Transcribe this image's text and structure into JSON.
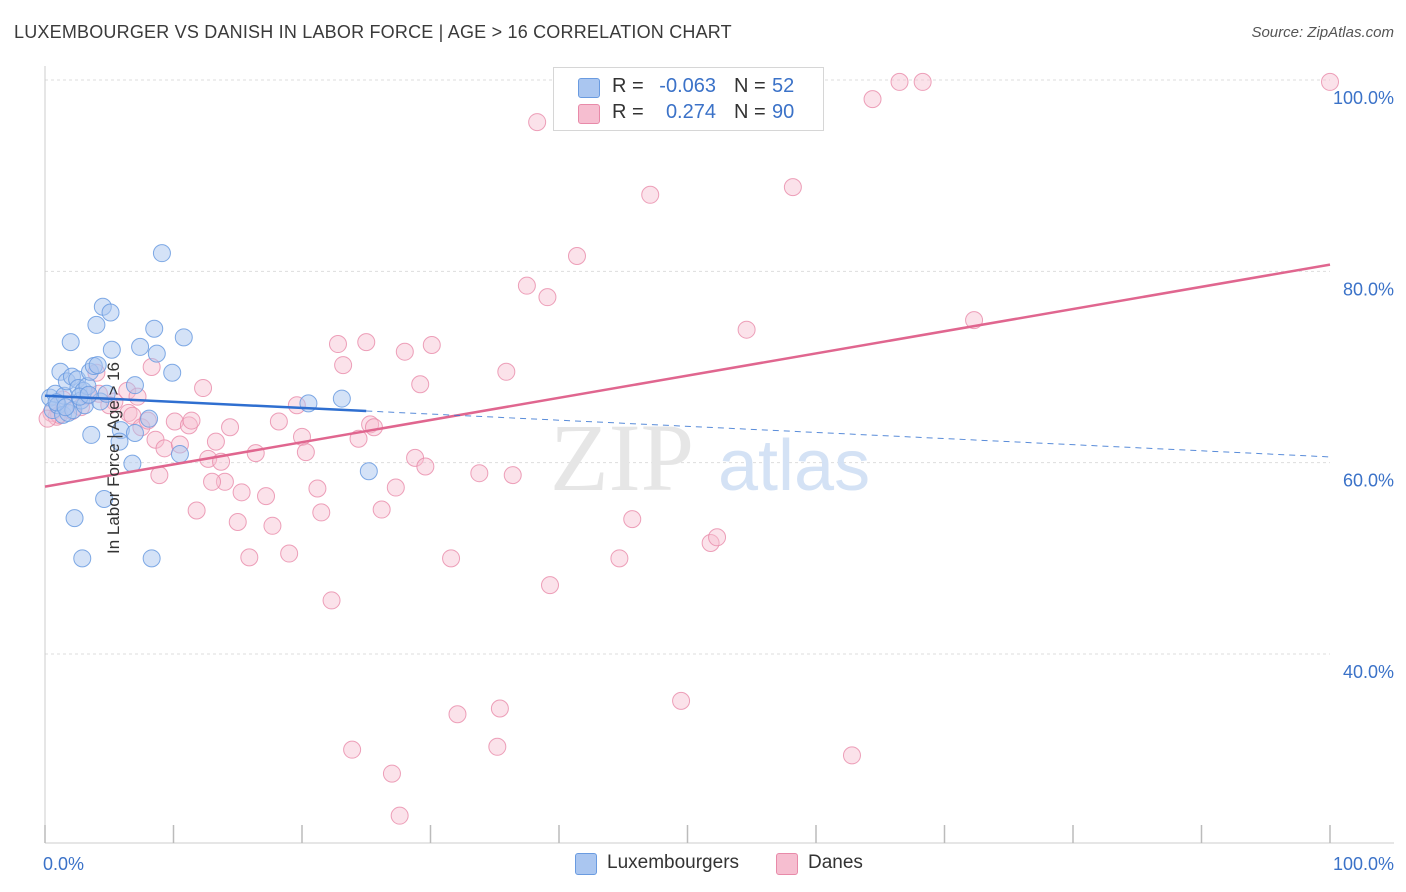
{
  "header": {
    "title": "LUXEMBOURGER VS DANISH IN LABOR FORCE | AGE > 16 CORRELATION CHART",
    "source": "Source: ZipAtlas.com"
  },
  "watermark": {
    "zip": "ZIP",
    "atlas": "atlas"
  },
  "legend": {
    "rows": [
      {
        "r_label": "R =",
        "r_value": "-0.063",
        "n_label": "N =",
        "n_value": "52"
      },
      {
        "r_label": "R =",
        "r_value": "0.274",
        "n_label": "N =",
        "n_value": "90"
      }
    ]
  },
  "bottom_legend": [
    "Luxembourgers",
    "Danes"
  ],
  "colors": {
    "blue_fill": "#aac6f0",
    "blue_stroke": "#6a9be0",
    "blue_line": "#2f6fd0",
    "pink_fill": "#f6bed0",
    "pink_stroke": "#e88aa9",
    "pink_line": "#e0668f",
    "tick_label": "#3b72c8",
    "grid": "#dddddd"
  },
  "chart_data": {
    "type": "scatter",
    "title": "LUXEMBOURGER VS DANISH IN LABOR FORCE | AGE > 16 CORRELATION CHART",
    "xlabel": "",
    "ylabel": "In Labor Force | Age > 16",
    "xlim": [
      0,
      100
    ],
    "ylim": [
      20,
      102
    ],
    "x_tick_labels": [
      "0.0%",
      "100.0%"
    ],
    "y_ticks": [
      40,
      60,
      80,
      100
    ],
    "y_tick_labels": [
      "40.0%",
      "60.0%",
      "80.0%",
      "100.0%"
    ],
    "grid": "horizontal dashed",
    "legend": "top-center",
    "series": [
      {
        "name": "Luxembourgers",
        "r": -0.063,
        "n": 52,
        "trend": {
          "x0": 0,
          "y0": 67.0,
          "x1": 25,
          "y1": 65.4,
          "dashed_to_x": 100,
          "dashed_to_y": 60.6
        },
        "points": [
          [
            0.4,
            66.8
          ],
          [
            0.6,
            65.5
          ],
          [
            0.8,
            67.2
          ],
          [
            1.0,
            66.0
          ],
          [
            1.2,
            69.5
          ],
          [
            1.4,
            65.0
          ],
          [
            1.5,
            67.0
          ],
          [
            1.7,
            68.5
          ],
          [
            1.8,
            65.2
          ],
          [
            2.0,
            72.6
          ],
          [
            2.1,
            69.0
          ],
          [
            2.2,
            65.5
          ],
          [
            2.3,
            54.2
          ],
          [
            2.5,
            68.7
          ],
          [
            2.6,
            67.8
          ],
          [
            2.8,
            66.5
          ],
          [
            2.9,
            50.0
          ],
          [
            3.0,
            67.5
          ],
          [
            3.1,
            66.0
          ],
          [
            3.3,
            68.0
          ],
          [
            3.5,
            69.5
          ],
          [
            3.6,
            62.9
          ],
          [
            3.8,
            70.1
          ],
          [
            4.0,
            74.4
          ],
          [
            4.1,
            70.2
          ],
          [
            4.3,
            66.4
          ],
          [
            4.5,
            76.3
          ],
          [
            4.6,
            56.2
          ],
          [
            4.8,
            67.2
          ],
          [
            5.1,
            75.7
          ],
          [
            5.2,
            71.8
          ],
          [
            5.9,
            63.4
          ],
          [
            5.8,
            62.2
          ],
          [
            6.8,
            59.9
          ],
          [
            7.0,
            68.1
          ],
          [
            7.0,
            63.1
          ],
          [
            7.4,
            72.1
          ],
          [
            8.1,
            64.6
          ],
          [
            8.3,
            50.0
          ],
          [
            8.5,
            74.0
          ],
          [
            8.7,
            71.4
          ],
          [
            9.1,
            81.9
          ],
          [
            9.9,
            69.4
          ],
          [
            10.5,
            60.9
          ],
          [
            10.8,
            73.1
          ],
          [
            20.5,
            66.2
          ],
          [
            23.1,
            66.7
          ],
          [
            25.2,
            59.1
          ],
          [
            0.9,
            66.3
          ],
          [
            1.6,
            65.8
          ],
          [
            2.7,
            66.9
          ],
          [
            3.4,
            67.1
          ]
        ]
      },
      {
        "name": "Danes",
        "r": 0.274,
        "n": 90,
        "trend": {
          "x0": 0,
          "y0": 57.5,
          "x1": 100,
          "y1": 80.7
        },
        "points": [
          [
            0.5,
            65.2
          ],
          [
            0.9,
            64.8
          ],
          [
            1.4,
            66.6
          ],
          [
            2.1,
            65.4
          ],
          [
            2.8,
            65.8
          ],
          [
            3.3,
            67.0
          ],
          [
            4.0,
            69.4
          ],
          [
            5.4,
            66.4
          ],
          [
            6.4,
            67.5
          ],
          [
            6.5,
            65.2
          ],
          [
            6.8,
            64.9
          ],
          [
            7.2,
            66.9
          ],
          [
            7.5,
            63.7
          ],
          [
            8.0,
            64.4
          ],
          [
            8.3,
            70.0
          ],
          [
            8.6,
            62.4
          ],
          [
            8.9,
            58.7
          ],
          [
            9.3,
            61.5
          ],
          [
            10.1,
            64.3
          ],
          [
            10.5,
            61.9
          ],
          [
            11.2,
            63.9
          ],
          [
            11.4,
            64.4
          ],
          [
            11.8,
            55.0
          ],
          [
            12.3,
            67.8
          ],
          [
            12.7,
            60.4
          ],
          [
            13.3,
            62.2
          ],
          [
            13.7,
            60.1
          ],
          [
            14.0,
            58.0
          ],
          [
            14.4,
            63.7
          ],
          [
            15.0,
            53.8
          ],
          [
            15.3,
            56.9
          ],
          [
            15.9,
            50.1
          ],
          [
            16.4,
            61.0
          ],
          [
            17.2,
            56.5
          ],
          [
            17.7,
            53.4
          ],
          [
            18.2,
            64.3
          ],
          [
            19.0,
            50.5
          ],
          [
            19.6,
            66.0
          ],
          [
            20.0,
            62.7
          ],
          [
            20.3,
            61.1
          ],
          [
            21.2,
            57.3
          ],
          [
            21.5,
            54.8
          ],
          [
            22.3,
            45.6
          ],
          [
            22.8,
            72.4
          ],
          [
            23.2,
            70.2
          ],
          [
            23.9,
            30.0
          ],
          [
            24.4,
            62.5
          ],
          [
            25.0,
            72.6
          ],
          [
            25.3,
            64.0
          ],
          [
            25.6,
            63.7
          ],
          [
            26.2,
            55.1
          ],
          [
            27.0,
            27.5
          ],
          [
            27.3,
            57.4
          ],
          [
            27.6,
            23.1
          ],
          [
            28.0,
            71.6
          ],
          [
            29.2,
            68.2
          ],
          [
            28.8,
            60.5
          ],
          [
            29.6,
            59.6
          ],
          [
            30.1,
            72.3
          ],
          [
            31.6,
            50.0
          ],
          [
            32.1,
            33.7
          ],
          [
            33.8,
            58.9
          ],
          [
            35.2,
            30.3
          ],
          [
            35.4,
            34.3
          ],
          [
            35.9,
            69.5
          ],
          [
            36.4,
            58.7
          ],
          [
            37.5,
            78.5
          ],
          [
            38.3,
            95.6
          ],
          [
            39.1,
            77.3
          ],
          [
            39.3,
            47.2
          ],
          [
            41.4,
            81.6
          ],
          [
            44.7,
            50.0
          ],
          [
            45.7,
            54.1
          ],
          [
            47.1,
            88.0
          ],
          [
            49.5,
            35.1
          ],
          [
            51.8,
            51.6
          ],
          [
            52.3,
            52.2
          ],
          [
            54.6,
            73.9
          ],
          [
            58.2,
            88.8
          ],
          [
            62.8,
            29.4
          ],
          [
            64.4,
            98.0
          ],
          [
            66.5,
            99.8
          ],
          [
            68.3,
            99.8
          ],
          [
            72.3,
            74.9
          ],
          [
            100.0,
            99.8
          ],
          [
            13.0,
            58.0
          ],
          [
            5.0,
            66.0
          ],
          [
            4.2,
            67.2
          ],
          [
            1.1,
            65.0
          ],
          [
            0.2,
            64.6
          ]
        ]
      }
    ]
  }
}
